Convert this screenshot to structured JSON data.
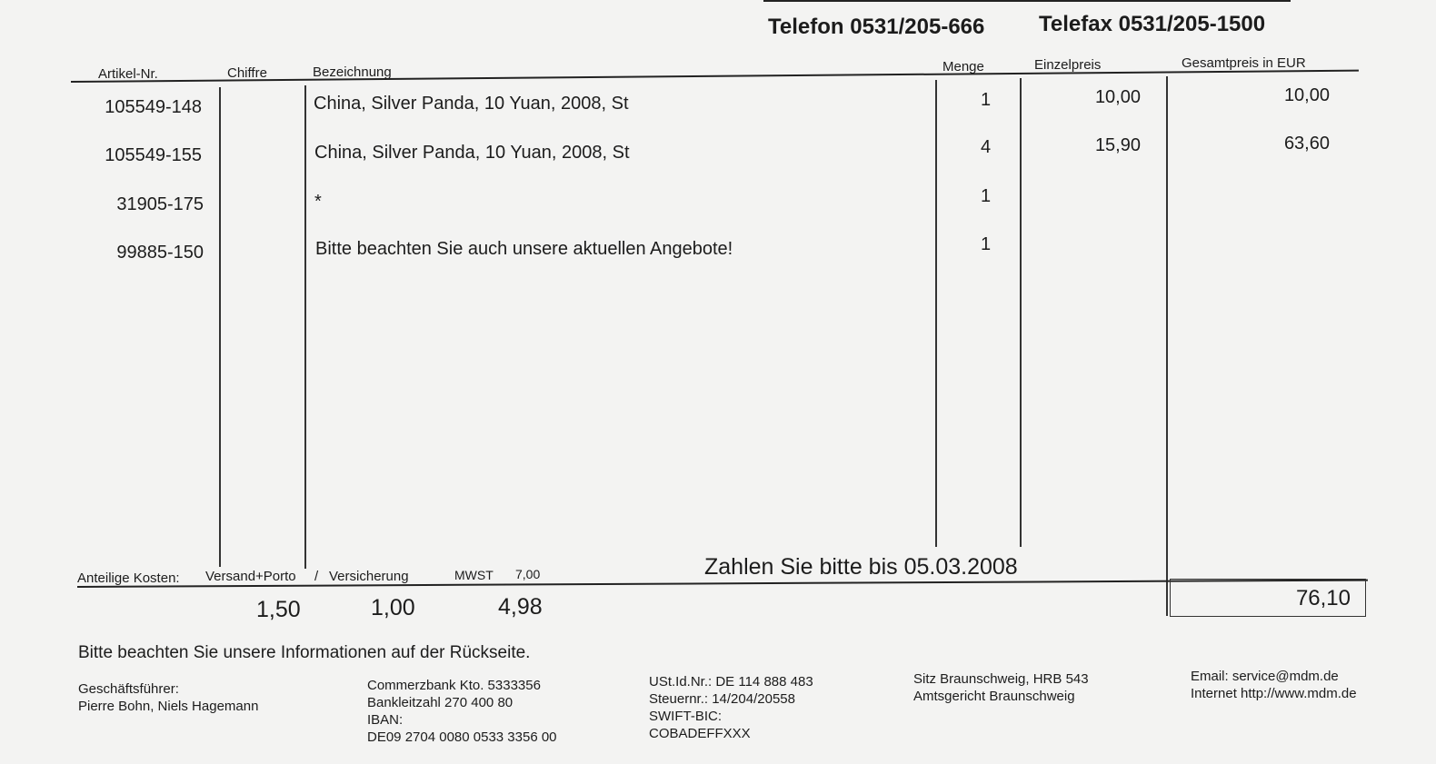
{
  "header": {
    "telefon": "Telefon 0531/205-666",
    "telefax": "Telefax 0531/205-1500"
  },
  "columns": [
    "Artikel-Nr.",
    "Chiffre",
    "Bezeichnung",
    "Menge",
    "Einzelpreis",
    "Gesamtpreis in EUR"
  ],
  "rows": [
    {
      "artikel": "105549-148",
      "bezeichnung": "China, Silver Panda, 10 Yuan, 2008, St",
      "menge": "1",
      "einzelpreis": "10,00",
      "gesamtpreis": "10,00"
    },
    {
      "artikel": "105549-155",
      "bezeichnung": "China, Silver Panda, 10 Yuan, 2008, St",
      "menge": "4",
      "einzelpreis": "15,90",
      "gesamtpreis": "63,60"
    },
    {
      "artikel": "31905-175",
      "bezeichnung": "*",
      "menge": "1"
    },
    {
      "artikel": "99885-150",
      "bezeichnung": "Bitte beachten Sie auch unsere aktuellen Angebote!",
      "menge": "1"
    }
  ],
  "costs": {
    "label": "Anteilige Kosten:",
    "versand_label": "Versand+Porto",
    "sep": "/",
    "versicherung_label": "Versicherung",
    "mwst_label": "MWST",
    "mwst_rate": "7,00",
    "versand": "1,50",
    "versicherung": "1,00",
    "mwst": "4,98",
    "due": "Zahlen Sie bitte bis 05.03.2008",
    "total": "76,10"
  },
  "notice": "Bitte beachten Sie unsere Informationen auf der Rückseite.",
  "footer": {
    "col1": [
      "Geschäftsführer:",
      "Pierre Bohn, Niels Hagemann"
    ],
    "col2": [
      "Commerzbank Kto. 5333356",
      "Bankleitzahl  270 400 80",
      "IBAN:",
      "DE09 2704 0080 0533 3356 00"
    ],
    "col3": [
      "USt.Id.Nr.: DE 114 888 483",
      "Steuernr.:  14/204/20558",
      "SWIFT-BIC:",
      "COBADEFFXXX"
    ],
    "col4": [
      "Sitz Braunschweig, HRB 543",
      "Amtsgericht Braunschweig"
    ],
    "col5": [
      "Email: service@mdm.de",
      "Internet http://www.mdm.de"
    ]
  }
}
